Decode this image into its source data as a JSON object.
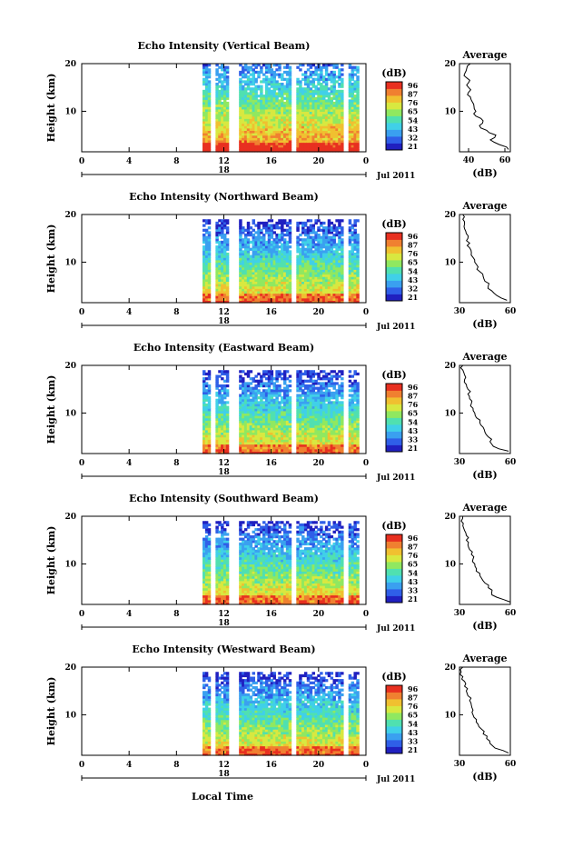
{
  "figure": {
    "bottom_xlabel": "Local Time",
    "colorbar_unit": "(dB)",
    "colorbar_ticks": [
      "96",
      "87",
      "76",
      "65",
      "54",
      "43",
      "32",
      "21"
    ],
    "colorbar_ticks_alt": [
      "96",
      "87",
      "76",
      "65",
      "54",
      "43",
      "33",
      "21"
    ],
    "colormap": [
      "#2020c0",
      "#2f5fe8",
      "#3aa0f0",
      "#40d0e8",
      "#50e0b0",
      "#90e860",
      "#d8e840",
      "#f0c030",
      "#f08030",
      "#e83020"
    ]
  },
  "chart_data": [
    {
      "type": "heatmap",
      "title": "Echo Intensity (Vertical Beam)",
      "ylabel": "Height (km)",
      "yticks": [
        "20",
        "10"
      ],
      "xticks": [
        "0",
        "4",
        "8",
        "12",
        "16",
        "20",
        "0"
      ],
      "date_label": "18",
      "month_label": "Jul 2011",
      "xlim": [
        0,
        24
      ],
      "ylim": [
        1.5,
        20
      ],
      "data_start_hour": 10.2,
      "data_end_hour": 23.2,
      "gaps": [
        [
          11.0,
          11.1
        ],
        [
          12.6,
          13.2
        ],
        [
          17.8,
          17.95
        ],
        [
          22.2,
          22.5
        ]
      ],
      "top_height_km": 20,
      "colorbar_tickset": "colorbar_ticks",
      "profile": {
        "title": "Average",
        "xlabel": "(dB)",
        "xticks": [
          "40",
          "60"
        ],
        "xlim": [
          35,
          63
        ],
        "yticks": [
          "20",
          "10"
        ],
        "heights": [
          2,
          3,
          4,
          5,
          6,
          7,
          8,
          9,
          10,
          11,
          12,
          13,
          14,
          15,
          16,
          17,
          18,
          19,
          20
        ],
        "values": [
          62,
          57,
          52,
          55,
          50,
          46,
          48,
          44,
          44,
          43,
          42,
          41,
          40,
          40,
          40,
          39,
          38,
          39,
          41
        ]
      }
    },
    {
      "type": "heatmap",
      "title": "Echo Intensity (Northward Beam)",
      "ylabel": "Height (km)",
      "yticks": [
        "20",
        "10"
      ],
      "xticks": [
        "0",
        "4",
        "8",
        "12",
        "16",
        "20",
        "0"
      ],
      "date_label": "18",
      "month_label": "Jul 2011",
      "xlim": [
        0,
        24
      ],
      "ylim": [
        1.5,
        20
      ],
      "data_start_hour": 10.2,
      "data_end_hour": 23.2,
      "gaps": [
        [
          11.0,
          11.1
        ],
        [
          12.6,
          13.2
        ],
        [
          17.8,
          17.95
        ],
        [
          22.2,
          22.5
        ]
      ],
      "top_height_km": 19,
      "colorbar_tickset": "colorbar_ticks",
      "profile": {
        "title": "Average",
        "xlabel": "(dB)",
        "xticks": [
          "30",
          "60"
        ],
        "xlim": [
          30,
          60
        ],
        "yticks": [
          "20",
          "10"
        ],
        "heights": [
          2,
          3,
          4,
          5,
          6,
          7,
          8,
          9,
          10,
          11,
          12,
          13,
          14,
          15,
          16,
          17,
          18,
          19,
          20
        ],
        "values": [
          58,
          52,
          49,
          47,
          45,
          44,
          42,
          41,
          39,
          38,
          37,
          36,
          36,
          35,
          34,
          33,
          33,
          32,
          32
        ]
      }
    },
    {
      "type": "heatmap",
      "title": "Echo Intensity (Eastward Beam)",
      "ylabel": "Height (km)",
      "yticks": [
        "20",
        "10"
      ],
      "xticks": [
        "0",
        "4",
        "8",
        "12",
        "16",
        "20",
        "0"
      ],
      "date_label": "18",
      "month_label": "Jul 2011",
      "xlim": [
        0,
        24
      ],
      "ylim": [
        1.5,
        20
      ],
      "data_start_hour": 10.2,
      "data_end_hour": 23.2,
      "gaps": [
        [
          11.0,
          11.1
        ],
        [
          12.6,
          13.2
        ],
        [
          17.8,
          17.95
        ],
        [
          22.2,
          22.5
        ]
      ],
      "top_height_km": 19,
      "colorbar_tickset": "colorbar_ticks_alt",
      "profile": {
        "title": "Average",
        "xlabel": "(dB)",
        "xticks": [
          "30",
          "60"
        ],
        "xlim": [
          30,
          60
        ],
        "yticks": [
          "20",
          "10"
        ],
        "heights": [
          2,
          3,
          4,
          5,
          6,
          7,
          8,
          9,
          10,
          11,
          12,
          13,
          14,
          15,
          16,
          17,
          18,
          19,
          20
        ],
        "values": [
          59,
          50,
          48,
          47,
          45,
          44,
          42,
          40,
          39,
          38,
          37,
          36,
          35,
          35,
          34,
          33,
          33,
          32,
          32
        ]
      }
    },
    {
      "type": "heatmap",
      "title": "Echo Intensity (Southward Beam)",
      "ylabel": "Height (km)",
      "yticks": [
        "20",
        "10"
      ],
      "xticks": [
        "0",
        "4",
        "8",
        "12",
        "16",
        "20",
        "0"
      ],
      "date_label": "18",
      "month_label": "Jul 2011",
      "xlim": [
        0,
        24
      ],
      "ylim": [
        1.5,
        20
      ],
      "data_start_hour": 10.2,
      "data_end_hour": 23.2,
      "gaps": [
        [
          11.0,
          11.1
        ],
        [
          12.6,
          13.2
        ],
        [
          17.8,
          17.95
        ],
        [
          22.2,
          22.5
        ]
      ],
      "top_height_km": 19,
      "colorbar_tickset": "colorbar_ticks_alt",
      "profile": {
        "title": "Average",
        "xlabel": "(dB)",
        "xticks": [
          "30",
          "60"
        ],
        "xlim": [
          30,
          60
        ],
        "yticks": [
          "20",
          "10"
        ],
        "heights": [
          2,
          3,
          4,
          5,
          6,
          7,
          8,
          9,
          10,
          11,
          12,
          13,
          14,
          15,
          16,
          17,
          18,
          19,
          20
        ],
        "values": [
          60,
          52,
          49,
          47,
          45,
          43,
          42,
          40,
          39,
          38,
          37,
          36,
          35,
          34,
          34,
          33,
          32,
          31,
          32
        ]
      }
    },
    {
      "type": "heatmap",
      "title": "Echo Intensity (Westward Beam)",
      "ylabel": "Height (km)",
      "yticks": [
        "20",
        "10"
      ],
      "xticks": [
        "0",
        "4",
        "8",
        "12",
        "16",
        "20",
        "0"
      ],
      "date_label": "18",
      "month_label": "Jul 2011",
      "xlim": [
        0,
        24
      ],
      "ylim": [
        1.5,
        20
      ],
      "data_start_hour": 10.2,
      "data_end_hour": 23.2,
      "gaps": [
        [
          11.0,
          11.1
        ],
        [
          12.6,
          13.2
        ],
        [
          17.8,
          17.95
        ],
        [
          22.2,
          22.5
        ]
      ],
      "top_height_km": 19,
      "colorbar_tickset": "colorbar_ticks_alt",
      "profile": {
        "title": "Average",
        "xlabel": "(dB)",
        "xticks": [
          "30",
          "60"
        ],
        "xlim": [
          30,
          60
        ],
        "yticks": [
          "20",
          "10"
        ],
        "heights": [
          2,
          3,
          4,
          5,
          6,
          7,
          8,
          9,
          10,
          11,
          12,
          13,
          14,
          15,
          16,
          17,
          18,
          19,
          20
        ],
        "values": [
          59,
          51,
          48,
          46,
          44,
          43,
          41,
          40,
          38,
          38,
          37,
          36,
          35,
          34,
          33,
          33,
          32,
          31,
          32
        ]
      }
    }
  ]
}
